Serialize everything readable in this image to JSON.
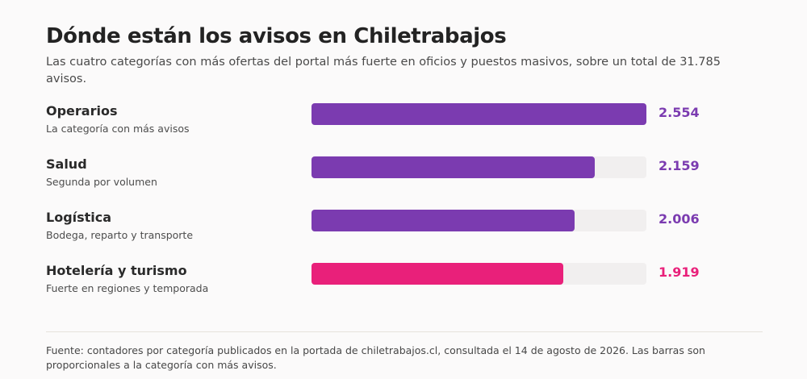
{
  "title": "Dónde están los avisos en Chiletrabajos",
  "subtitle": "Las cuatro categorías con más ofertas del portal más fuerte en oficios y puestos masivos, sobre un total de 31.785 avisos.",
  "footnote": "Fuente: contadores por categoría publicados en la portada de chiletrabajos.cl, consultada el 14 de agosto de 2026. Las barras son proporcionales a la categoría con más avisos.",
  "colors": {
    "primary": "#7b3bb0",
    "highlight": "#e9207a"
  },
  "chart_data": {
    "type": "bar",
    "orientation": "horizontal",
    "title": "Dónde están los avisos en Chiletrabajos",
    "xlim": [
      0,
      2554
    ],
    "categories": [
      "Operarios",
      "Salud",
      "Logística",
      "Hotelería y turismo"
    ],
    "values": [
      2554,
      2159,
      2006,
      1919
    ],
    "value_labels": [
      "2.554",
      "2.159",
      "2.006",
      "1.919"
    ],
    "notes": [
      "La categoría con más avisos",
      "Segunda por volumen",
      "Bodega, reparto y transporte",
      "Fuerte en regiones y temporada"
    ],
    "highlight_index": 3
  }
}
